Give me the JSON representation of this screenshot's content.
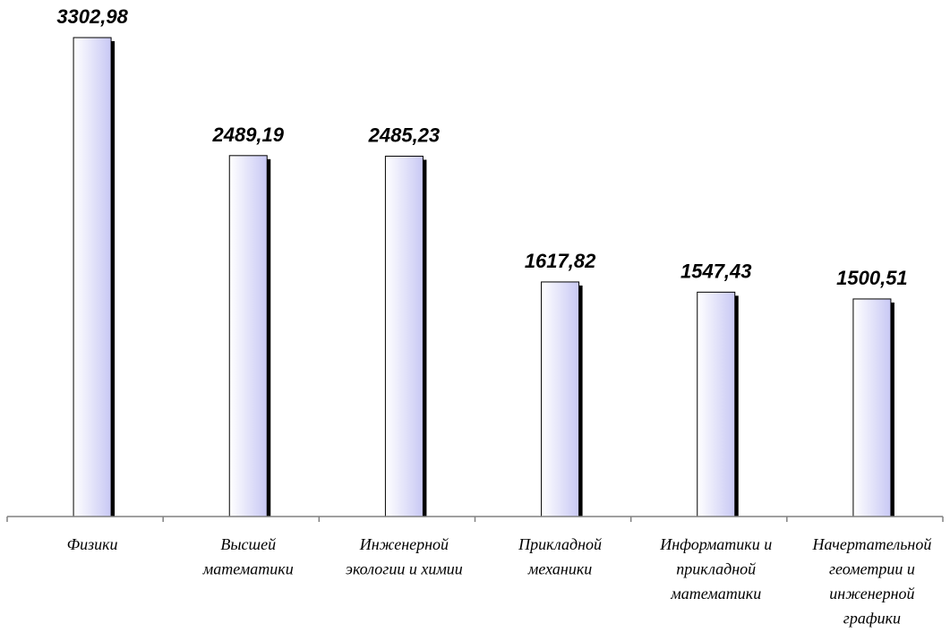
{
  "chart_data": {
    "type": "bar",
    "categories": [
      [
        "Физики"
      ],
      [
        "Высшей",
        "математики"
      ],
      [
        "Инженерной",
        "экологии и химии"
      ],
      [
        "Прикладной",
        "механики"
      ],
      [
        "Информатики и",
        "прикладной",
        "математики"
      ],
      [
        "Начертательной",
        "геометрии и",
        "инженерной",
        "графики"
      ]
    ],
    "values": [
      3302.98,
      2489.19,
      2485.23,
      1617.82,
      1547.43,
      1500.51
    ],
    "value_labels": [
      "3302,98",
      "2489,19",
      "2485,23",
      "1617,82",
      "1547,43",
      "1500,51"
    ],
    "ylim": [
      0,
      3302.98
    ],
    "grid": false,
    "bar_fill_light": "#ffffff",
    "bar_fill_dark": "#c8c8f4",
    "bar_shadow": "#000000",
    "axis_color": "#808080"
  }
}
